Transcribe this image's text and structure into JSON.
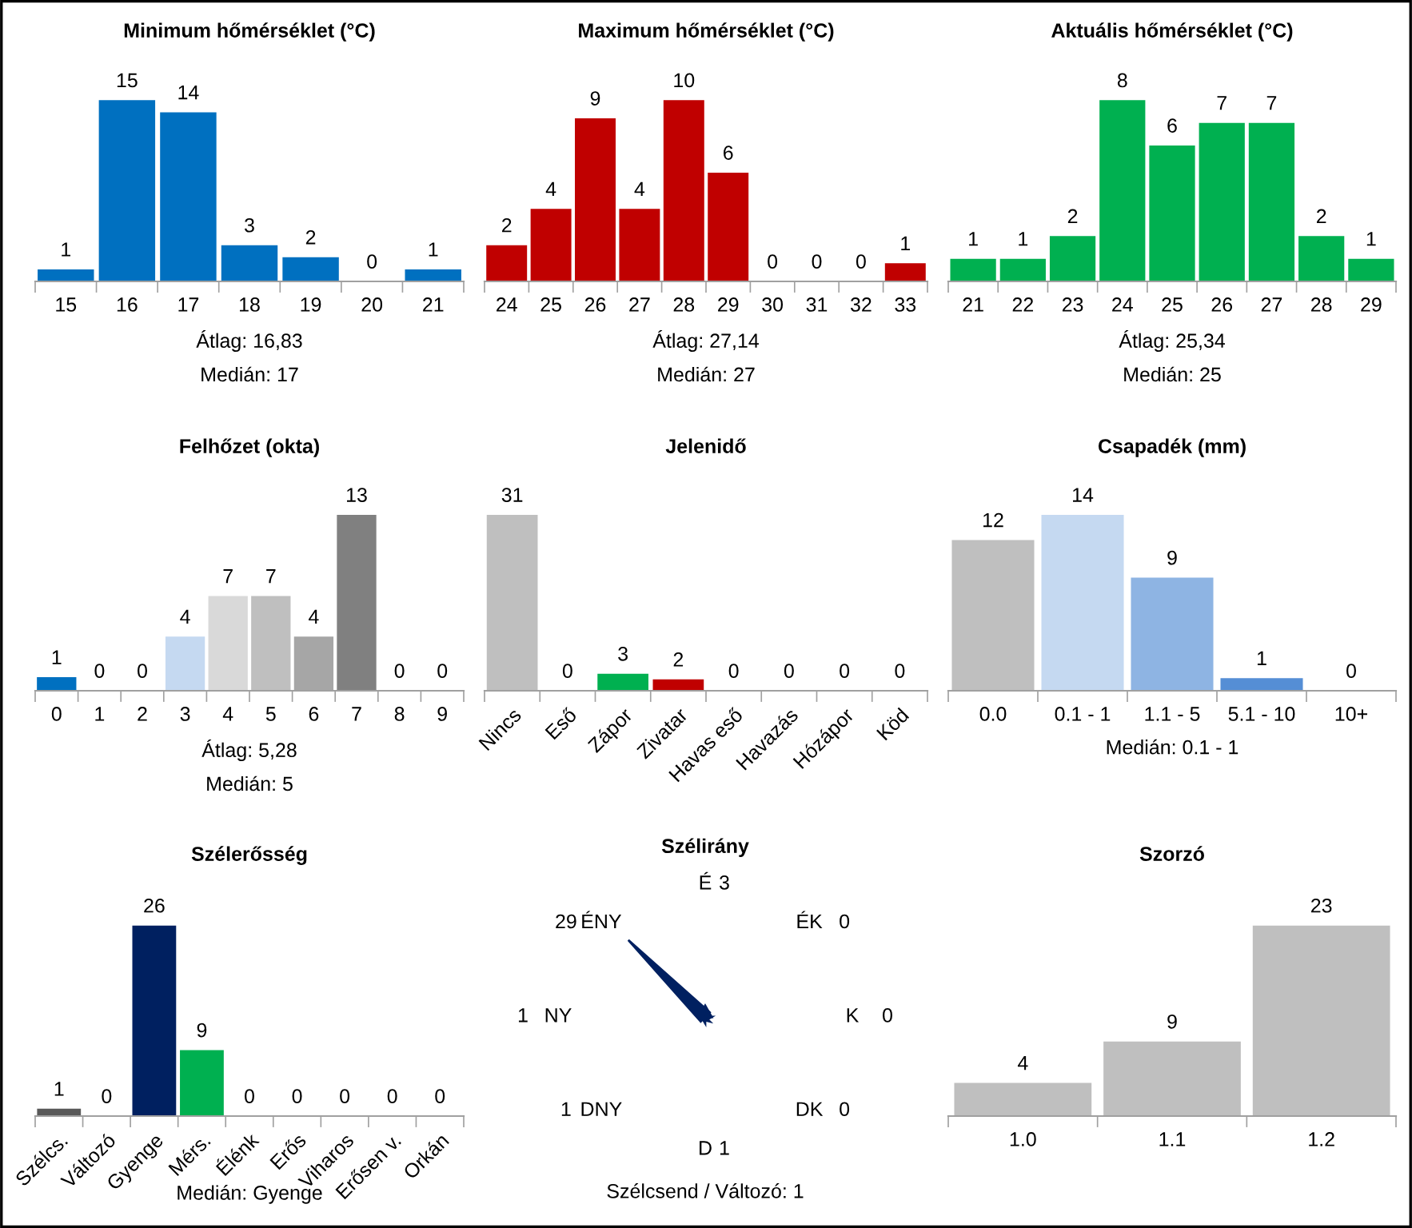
{
  "chart_data": [
    {
      "type": "bar",
      "title": "Minimum hőmérséklet (°C)",
      "categories": [
        "15",
        "16",
        "17",
        "18",
        "19",
        "20",
        "21"
      ],
      "values": [
        1,
        15,
        14,
        3,
        2,
        0,
        1
      ],
      "color": "#0070c0",
      "data_labels": true,
      "tick_labels": "x",
      "annotations": [
        "Átlag: 16,83",
        "Medián: 17"
      ]
    },
    {
      "type": "bar",
      "title": "Maximum hőmérséklet (°C)",
      "categories": [
        "24",
        "25",
        "26",
        "27",
        "28",
        "29",
        "30",
        "31",
        "32",
        "33"
      ],
      "values": [
        2,
        4,
        9,
        4,
        10,
        6,
        0,
        0,
        0,
        1
      ],
      "color": "#c00000",
      "data_labels": true,
      "tick_labels": "x",
      "annotations": [
        "Átlag: 27,14",
        "Medián: 27"
      ]
    },
    {
      "type": "bar",
      "title": "Aktuális hőmérséklet (°C)",
      "categories": [
        "21",
        "22",
        "23",
        "24",
        "25",
        "26",
        "27",
        "28",
        "29"
      ],
      "values": [
        1,
        1,
        2,
        8,
        6,
        7,
        7,
        2,
        1
      ],
      "color": "#00b050",
      "data_labels": true,
      "tick_labels": "x",
      "annotations": [
        "Átlag: 25,34",
        "Medián: 25"
      ]
    },
    {
      "type": "bar",
      "title": "Felhőzet (okta)",
      "categories": [
        "0",
        "1",
        "2",
        "3",
        "4",
        "5",
        "6",
        "7",
        "8",
        "9"
      ],
      "values": [
        1,
        0,
        0,
        4,
        7,
        7,
        4,
        13,
        0,
        0
      ],
      "colors": [
        "#0070c0",
        null,
        null,
        "#c5d9f1",
        "#d9d9d9",
        "#bfbfbf",
        "#a6a6a6",
        "#808080",
        null,
        null
      ],
      "data_labels": true,
      "tick_labels": "x",
      "annotations": [
        "Átlag: 5,28",
        "Medián: 5"
      ]
    },
    {
      "type": "bar",
      "title": "Jelenidő",
      "categories": [
        "Nincs",
        "Eső",
        "Zápor",
        "Zivatar",
        "Havas eső",
        "Havazás",
        "Hózápor",
        "Köd"
      ],
      "values": [
        31,
        0,
        3,
        2,
        0,
        0,
        0,
        0
      ],
      "colors": [
        "#bfbfbf",
        null,
        "#00b050",
        "#c00000",
        null,
        null,
        null,
        null
      ],
      "data_labels": true,
      "tick_labels": "x"
    },
    {
      "type": "bar",
      "title": "Csapadék (mm)",
      "categories": [
        "0.0",
        "0.1 - 1",
        "1.1 - 5",
        "5.1 - 10",
        "10+"
      ],
      "values": [
        12,
        14,
        9,
        1,
        0
      ],
      "colors": [
        "#bfbfbf",
        "#c5d9f1",
        "#8eb4e3",
        "#558ed5",
        null
      ],
      "data_labels": true,
      "tick_labels": "x",
      "annotations": [
        "Medián: 0.1 - 1"
      ]
    },
    {
      "type": "bar",
      "title": "Szélerősség",
      "categories": [
        "Szélcs.",
        "Változó",
        "Gyenge",
        "Mérs.",
        "Élénk",
        "Erős",
        "Viharos",
        "Erősen v.",
        "Orkán"
      ],
      "values": [
        1,
        0,
        26,
        9,
        0,
        0,
        0,
        0,
        0
      ],
      "colors": [
        "#595959",
        null,
        "#002060",
        "#00b050",
        null,
        null,
        null,
        null,
        null
      ],
      "data_labels": true,
      "tick_labels": "x",
      "annotations": [
        "Medián: Gyenge"
      ]
    },
    {
      "type": "other",
      "title": "Szélirány",
      "categories": [
        "É",
        "ÉK",
        "K",
        "DK",
        "D",
        "DNY",
        "NY",
        "ÉNY"
      ],
      "values": [
        3,
        0,
        0,
        0,
        1,
        1,
        1,
        29
      ],
      "color": "#002060",
      "data_labels": true,
      "annotations": [
        "Szélcsend / Változó: 1"
      ]
    },
    {
      "type": "bar",
      "title": "Szorzó",
      "categories": [
        "1.0",
        "1.1",
        "1.2"
      ],
      "values": [
        4,
        9,
        23
      ],
      "color": "#bfbfbf",
      "data_labels": true,
      "tick_labels": "x"
    }
  ]
}
